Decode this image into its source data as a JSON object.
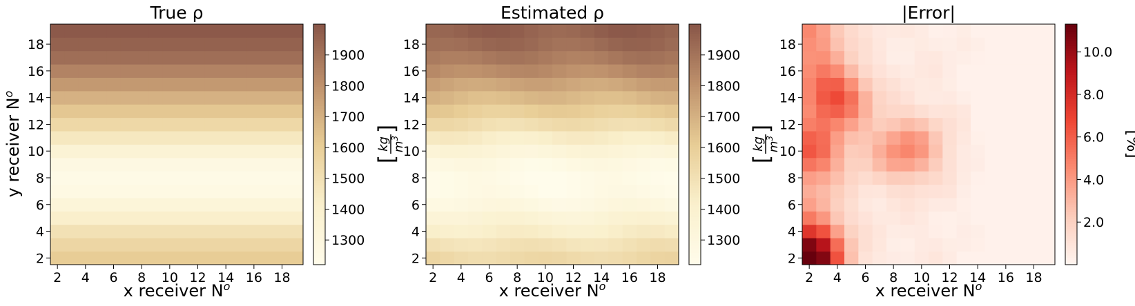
{
  "chart_data": [
    {
      "type": "heatmap",
      "title": "True ρ",
      "xlabel": "x receiver N",
      "xlabel_sup": "o",
      "ylabel": "y receiver N",
      "ylabel_sup": "o",
      "x_ticks": [
        2,
        4,
        6,
        8,
        10,
        12,
        14,
        16,
        18
      ],
      "y_ticks": [
        2,
        4,
        6,
        8,
        10,
        12,
        14,
        16,
        18
      ],
      "x_range": [
        1.5,
        19.5
      ],
      "y_range": [
        1.5,
        19.5
      ],
      "colormap": "YlOrBr-brown",
      "colorbar": {
        "label": "[kg/m³]",
        "range": [
          1220,
          2000
        ],
        "ticks": [
          1300,
          1400,
          1500,
          1600,
          1700,
          1800,
          1900
        ],
        "tick_labels": [
          "1300",
          "1400",
          "1500",
          "1600",
          "1700",
          "1800",
          "1900"
        ]
      },
      "row_profile": {
        "y": [
          2,
          3,
          4,
          5,
          6,
          7,
          8,
          9,
          10,
          11,
          12,
          13,
          14,
          15,
          16,
          17,
          18,
          19
        ],
        "values": [
          1610,
          1560,
          1500,
          1420,
          1340,
          1270,
          1250,
          1280,
          1360,
          1460,
          1550,
          1630,
          1700,
          1780,
          1850,
          1920,
          1960,
          1990
        ]
      }
    },
    {
      "type": "heatmap",
      "title": "Estimated ρ",
      "xlabel": "x receiver N",
      "xlabel_sup": "o",
      "ylabel": "",
      "x_ticks": [
        2,
        4,
        6,
        8,
        10,
        12,
        14,
        16,
        18
      ],
      "y_ticks": [
        2,
        4,
        6,
        8,
        10,
        12,
        14,
        16,
        18
      ],
      "x_range": [
        1.5,
        19.5
      ],
      "y_range": [
        1.5,
        19.5
      ],
      "colormap": "YlOrBr-brown",
      "colorbar": {
        "label": "[kg/m³]",
        "range": [
          1220,
          2000
        ],
        "ticks": [
          1300,
          1400,
          1500,
          1600,
          1700,
          1800,
          1900
        ],
        "tick_labels": [
          "1300",
          "1400",
          "1500",
          "1600",
          "1700",
          "1800",
          "1900"
        ]
      },
      "row_profile": {
        "y": [
          2,
          3,
          4,
          5,
          6,
          7,
          8,
          9,
          10,
          11,
          12,
          13,
          14,
          15,
          16,
          17,
          18,
          19
        ],
        "values": [
          1550,
          1500,
          1430,
          1370,
          1300,
          1260,
          1250,
          1280,
          1350,
          1440,
          1530,
          1610,
          1680,
          1750,
          1830,
          1890,
          1940,
          1970
        ]
      }
    },
    {
      "type": "heatmap",
      "title": "|Error|",
      "xlabel": "x receiver N",
      "xlabel_sup": "o",
      "ylabel": "",
      "x_ticks": [
        2,
        4,
        6,
        8,
        10,
        12,
        14,
        16,
        18
      ],
      "y_ticks": [
        2,
        4,
        6,
        8,
        10,
        12,
        14,
        16,
        18
      ],
      "x_range": [
        1.5,
        19.5
      ],
      "y_range": [
        1.5,
        19.5
      ],
      "colormap": "Reds",
      "colorbar": {
        "label": "[%]",
        "range": [
          0,
          11.3
        ],
        "ticks": [
          2,
          4,
          6,
          8,
          10
        ],
        "tick_labels": [
          "2.0",
          "4.0",
          "6.0",
          "8.0",
          "10.0"
        ]
      },
      "error_field": {
        "vmax": 11.3,
        "hotspots": [
          {
            "x": 2,
            "y": 2,
            "value": 11.3
          },
          {
            "x": 4,
            "y": 14,
            "value": 8.5
          },
          {
            "x": 2,
            "y": 10,
            "value": 8.0
          },
          {
            "x": 9,
            "y": 10,
            "value": 6.5
          }
        ]
      }
    }
  ]
}
